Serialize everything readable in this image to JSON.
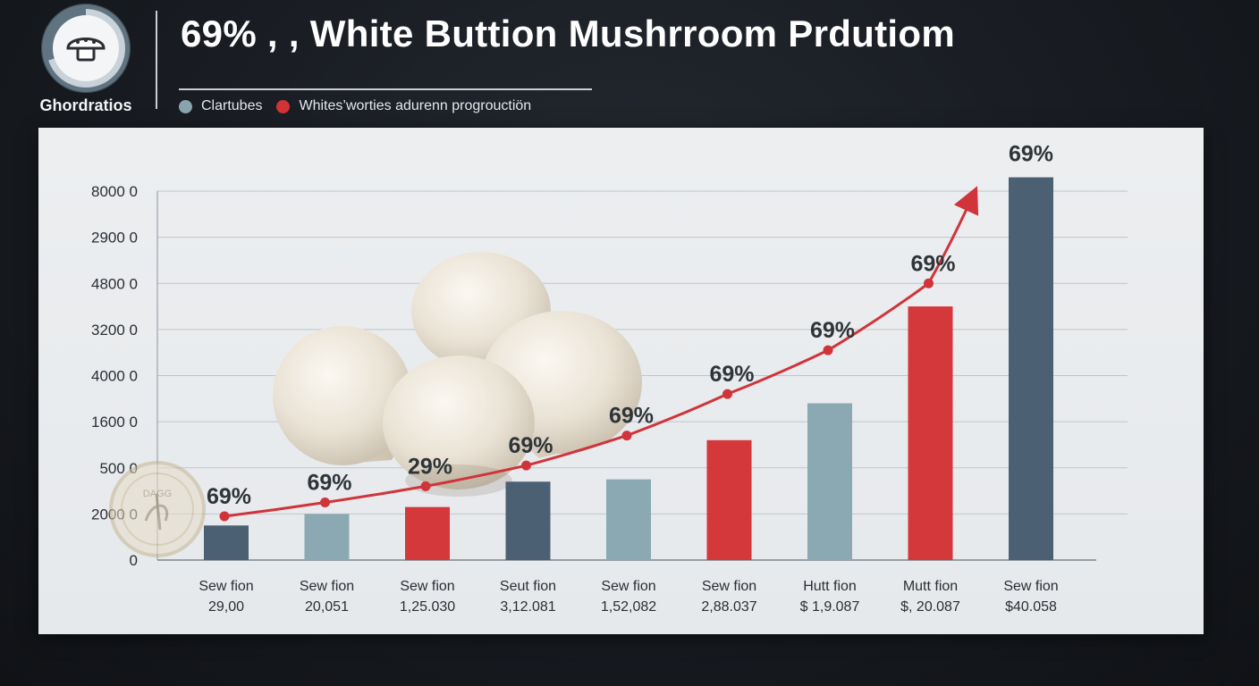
{
  "header": {
    "title": "69% , , White Buttion Mushrroom Prdutiom",
    "logo_caption": "Ghordratios",
    "legend": [
      {
        "label": "Clartubes",
        "color": "#8aa4ae"
      },
      {
        "label": "Whites’worties adurenn progrouctiön",
        "color": "#d23434"
      }
    ]
  },
  "colors": {
    "dark_bar": "#4b6173",
    "light_bar": "#8aa9b3",
    "red_bar": "#d4383a",
    "trend_line": "#d0343a"
  },
  "icons": {
    "logo": "mushroom-icon",
    "watermark": "seal-icon"
  },
  "watermark_text": "DAGG",
  "chart_data": {
    "type": "bar",
    "title": "69% , , White Buttion Mushrroom Prdutiom",
    "y_tick_labels": [
      "0",
      "2000 0",
      "500 0",
      "1600 0",
      "4000 0",
      "3200 0",
      "4800 0",
      "2900 0",
      "8000 0"
    ],
    "categories": [
      {
        "name": "Sew fion",
        "sub": "29,00"
      },
      {
        "name": "Sew fion",
        "sub": "20,051"
      },
      {
        "name": "Sew fion",
        "sub": "1,25.030"
      },
      {
        "name": "Seut fion",
        "sub": "3,12.081"
      },
      {
        "name": "Sew fion",
        "sub": "1,52,082"
      },
      {
        "name": "Sew fion",
        "sub": "2,88.037"
      },
      {
        "name": "Hutt fion",
        "sub": "$ 1,9.087"
      },
      {
        "name": "Mutt fion",
        "sub": "$, 20.087"
      },
      {
        "name": "Sew fion",
        "sub": "$40.058"
      }
    ],
    "values": [
      0.75,
      1.0,
      1.15,
      1.7,
      1.75,
      2.6,
      3.4,
      5.5,
      8.3
    ],
    "bar_colors": [
      "dark",
      "light",
      "red",
      "dark",
      "light",
      "red",
      "light",
      "red",
      "dark"
    ],
    "bar_labels": [
      "",
      "",
      "",
      "",
      "",
      "",
      "",
      "",
      "69%"
    ],
    "trend_labels": [
      "69%",
      "69%",
      "29%",
      "69%",
      "69%",
      "69%",
      "69%",
      "69%"
    ],
    "trend": [
      0.95,
      1.25,
      1.6,
      2.05,
      2.7,
      3.6,
      4.55,
      6.0,
      7.9
    ],
    "legend_position": "top-left",
    "grid": true,
    "ylim": [
      0,
      8.0
    ]
  }
}
